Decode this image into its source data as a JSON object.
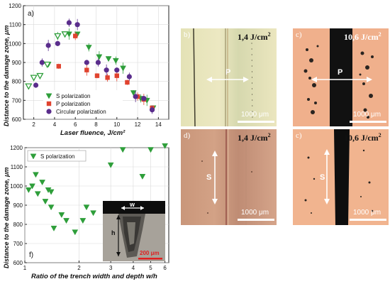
{
  "chart_data": [
    {
      "type": "scatter",
      "panel_label": "a)",
      "xlabel": "Laser fluence, J/cm²",
      "ylabel": "Distance to the damage zone, μm",
      "xlim": [
        1,
        15
      ],
      "ylim": [
        600,
        1200
      ],
      "xticks": [
        2,
        4,
        6,
        8,
        10,
        12,
        14
      ],
      "yticks": [
        600,
        700,
        800,
        900,
        1000,
        1100,
        1200
      ],
      "legend_position": "bottom-left",
      "series": [
        {
          "name": "S polarization",
          "marker": "triangle-down",
          "color": "#2e9e3a",
          "x": [
            3.4,
            4.3,
            5.4,
            6.2,
            7.3,
            8.3,
            9.2,
            9.9,
            10.6,
            11.6,
            12.3,
            12.9,
            13.5
          ],
          "y": [
            890,
            1040,
            1050,
            1050,
            980,
            930,
            920,
            910,
            870,
            740,
            710,
            700,
            660
          ]
        },
        {
          "name": "P polarization",
          "marker": "square",
          "color": "#e0432f",
          "x": [
            4.4,
            6.0,
            7.1,
            8.1,
            9.1,
            10.0,
            11.0,
            12.0,
            12.6,
            13.4
          ],
          "y": [
            880,
            1040,
            860,
            830,
            820,
            830,
            795,
            720,
            705,
            660
          ]
        },
        {
          "name": "Circular polarization",
          "marker": "circle",
          "color": "#5a2d8c",
          "x": [
            2.2,
            2.8,
            3.4,
            4.3,
            5.4,
            6.2,
            7.1,
            8.2,
            9.0,
            10.0,
            11.2,
            11.8,
            12.6,
            13.4
          ],
          "y": [
            780,
            900,
            990,
            1000,
            1110,
            1100,
            900,
            900,
            860,
            860,
            825,
            720,
            710,
            650
          ]
        },
        {
          "name": "",
          "marker": "triangle-down-open",
          "color": "#2e9e3a",
          "x": [
            1.5,
            2.0,
            2.6,
            3.3,
            4.3,
            5.0
          ],
          "y": [
            775,
            820,
            830,
            890,
            1040,
            1050
          ]
        }
      ]
    },
    {
      "type": "scatter",
      "panel_label": "f)",
      "xlabel": "Ratio of the trench width and depth w/h",
      "ylabel": "Distance to the damage zone, μm",
      "xscale": "log",
      "xlim": [
        1,
        6.3
      ],
      "ylim": [
        600,
        1200
      ],
      "xticks": [
        1,
        2,
        3,
        4,
        5,
        6
      ],
      "yticks": [
        600,
        700,
        800,
        900,
        1000,
        1100,
        1200
      ],
      "legend_position": "top-left",
      "series": [
        {
          "name": "S polarization",
          "marker": "triangle-down",
          "color": "#2e9e3a",
          "x": [
            1.05,
            1.1,
            1.15,
            1.18,
            1.25,
            1.3,
            1.35,
            1.4,
            1.4,
            1.45,
            1.6,
            1.7,
            1.9,
            2.1,
            2.2,
            2.4,
            3.0,
            3.5,
            4.5,
            5.0,
            6.0
          ],
          "y": [
            980,
            1000,
            1060,
            960,
            1020,
            920,
            980,
            890,
            970,
            780,
            850,
            820,
            760,
            820,
            890,
            860,
            1110,
            1190,
            1050,
            1190,
            1210
          ]
        }
      ]
    }
  ],
  "inset": {
    "width_label": "w",
    "depth_label": "h",
    "scale_label": "200 μm"
  },
  "photos": {
    "b": {
      "label": "b)",
      "fluence": "1,4 J/cm",
      "fluence_exp": "2",
      "pol": "P",
      "scale": "1000 μm"
    },
    "c_top": {
      "label": "c)",
      "fluence": "10,6 J/cm",
      "fluence_exp": "2",
      "pol": "P",
      "scale": "1000 μm"
    },
    "d": {
      "label": "d)",
      "fluence": "1,4 J/cm",
      "fluence_exp": "2",
      "pol": "S",
      "scale": "1000 μm"
    },
    "c_bottom": {
      "label": "c)",
      "fluence": "10,6 J/cm",
      "fluence_exp": "2",
      "pol": "S",
      "scale": "1000 μm"
    }
  }
}
